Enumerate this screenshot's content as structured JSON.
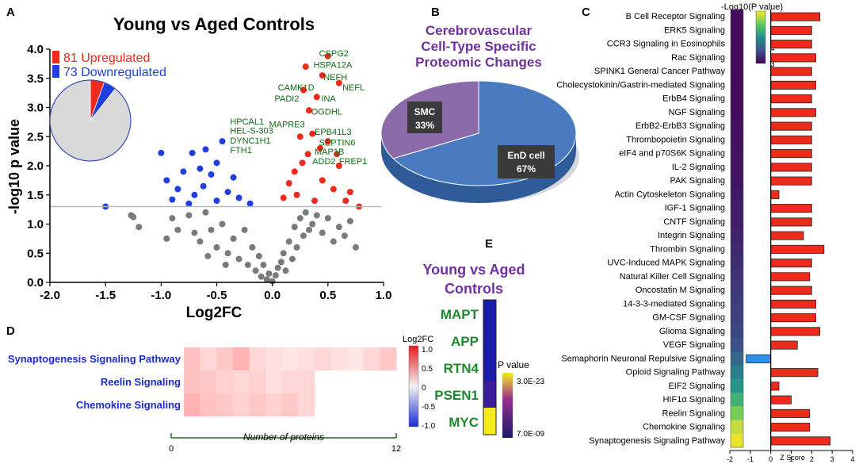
{
  "panels": {
    "A": "A",
    "B": "B",
    "C": "C",
    "D": "D",
    "E": "E"
  },
  "colors": {
    "up": "#ee2a1b",
    "down": "#1f3fe0",
    "ns": "#7a7a7a",
    "gene_label": "#0f6b12",
    "title_purple": "#7030a0",
    "pathway_blue": "#1c2bd2",
    "pie_end": "#4a7bc0",
    "pie_smc": "#8a6aa8",
    "bar_pos": "#ee2a1b",
    "bar_neg": "#2e8fe8"
  },
  "chart_data": [
    {
      "type": "scatter",
      "id": "volcano",
      "title": "Young vs Aged Controls",
      "xlabel": "Log2FC",
      "ylabel": "-log10 p value",
      "xlim": [
        -2.0,
        1.0
      ],
      "ylim": [
        0.0,
        4.0
      ],
      "xticks": [
        "-2.0",
        "-1.5",
        "-1.0",
        "-0.5",
        "0.0",
        "0.5",
        "1.0"
      ],
      "yticks": [
        "0.0",
        "0.5",
        "1.0",
        "1.5",
        "2.0",
        "2.5",
        "3.0",
        "3.5",
        "4.0"
      ],
      "threshold": 1.3,
      "legend": [
        {
          "label": "81 Upregulated",
          "color": "up"
        },
        {
          "label": "73 Downregulated",
          "color": "down"
        }
      ],
      "inset_pie": [
        {
          "name": "Upregulated",
          "value": 81
        },
        {
          "name": "Downregulated",
          "value": 73
        },
        {
          "name": "Unchanged",
          "value": 1300
        }
      ],
      "gene_labels": [
        {
          "text": "CSPG2",
          "x": 0.42,
          "y": 3.88
        },
        {
          "text": "HSPA12A",
          "x": 0.37,
          "y": 3.68
        },
        {
          "text": "NEFH",
          "x": 0.46,
          "y": 3.47
        },
        {
          "text": "CAMK1D",
          "x": 0.05,
          "y": 3.29
        },
        {
          "text": "NEFL",
          "x": 0.63,
          "y": 3.29
        },
        {
          "text": "PADI2",
          "x": 0.02,
          "y": 3.1
        },
        {
          "text": "INA",
          "x": 0.44,
          "y": 3.1
        },
        {
          "text": "OGDHL",
          "x": 0.35,
          "y": 2.88
        },
        {
          "text": "MAPRE3",
          "x": -0.03,
          "y": 2.66
        },
        {
          "text": "HPCAL1",
          "x": -0.38,
          "y": 2.71
        },
        {
          "text": "EPB41L3",
          "x": 0.38,
          "y": 2.53
        },
        {
          "text": "HEL-S-303",
          "x": -0.38,
          "y": 2.55
        },
        {
          "text": "SEPTIN6",
          "x": 0.42,
          "y": 2.35
        },
        {
          "text": "DYNC1H1",
          "x": -0.38,
          "y": 2.38
        },
        {
          "text": "MAP1B",
          "x": 0.38,
          "y": 2.19
        },
        {
          "text": "FTH1",
          "x": -0.38,
          "y": 2.22
        },
        {
          "text": "ADD2",
          "x": 0.36,
          "y": 2.03
        },
        {
          "text": "FREP1",
          "x": 0.6,
          "y": 2.03
        }
      ],
      "points_up": [
        [
          0.5,
          3.88
        ],
        [
          0.3,
          3.7
        ],
        [
          0.45,
          3.55
        ],
        [
          0.6,
          3.42
        ],
        [
          0.28,
          3.3
        ],
        [
          0.4,
          3.18
        ],
        [
          0.33,
          2.95
        ],
        [
          0.36,
          2.55
        ],
        [
          0.25,
          2.5
        ],
        [
          0.5,
          2.42
        ],
        [
          0.32,
          2.2
        ],
        [
          0.27,
          2.05
        ],
        [
          0.6,
          2.0
        ],
        [
          0.2,
          1.9
        ],
        [
          0.15,
          1.7
        ],
        [
          0.45,
          1.75
        ],
        [
          0.7,
          1.55
        ],
        [
          0.78,
          1.3
        ],
        [
          0.1,
          1.45
        ],
        [
          0.55,
          1.6
        ],
        [
          0.38,
          1.4
        ],
        [
          0.22,
          1.5
        ],
        [
          0.66,
          1.4
        ],
        [
          0.43,
          2.3
        ],
        [
          0.58,
          2.2
        ]
      ],
      "points_down": [
        [
          -0.45,
          2.42
        ],
        [
          -0.6,
          2.28
        ],
        [
          -0.72,
          2.22
        ],
        [
          -1.0,
          2.22
        ],
        [
          -0.5,
          2.05
        ],
        [
          -0.8,
          1.9
        ],
        [
          -0.55,
          1.85
        ],
        [
          -0.95,
          1.75
        ],
        [
          -0.62,
          1.65
        ],
        [
          -0.85,
          1.6
        ],
        [
          -0.4,
          1.55
        ],
        [
          -0.7,
          1.5
        ],
        [
          -0.3,
          1.45
        ],
        [
          -0.9,
          1.42
        ],
        [
          -0.5,
          1.4
        ],
        [
          -0.35,
          1.8
        ],
        [
          -0.75,
          1.35
        ],
        [
          -1.5,
          1.3
        ],
        [
          -0.2,
          1.35
        ],
        [
          -0.65,
          1.95
        ]
      ],
      "points_ns": [
        [
          -1.25,
          1.12
        ],
        [
          -1.27,
          1.15
        ],
        [
          -1.2,
          0.95
        ],
        [
          -0.9,
          1.1
        ],
        [
          -0.85,
          0.9
        ],
        [
          -0.7,
          0.85
        ],
        [
          -0.65,
          0.7
        ],
        [
          -0.55,
          0.9
        ],
        [
          -0.5,
          0.6
        ],
        [
          -0.45,
          1.0
        ],
        [
          -0.4,
          0.5
        ],
        [
          -0.35,
          0.75
        ],
        [
          -0.3,
          0.4
        ],
        [
          -0.25,
          0.9
        ],
        [
          -0.22,
          0.3
        ],
        [
          -0.18,
          0.6
        ],
        [
          -0.15,
          0.2
        ],
        [
          -0.12,
          0.45
        ],
        [
          -0.1,
          0.1
        ],
        [
          -0.08,
          0.3
        ],
        [
          -0.05,
          0.05
        ],
        [
          -0.03,
          0.15
        ],
        [
          0.0,
          0.02
        ],
        [
          0.03,
          0.12
        ],
        [
          0.05,
          0.25
        ],
        [
          0.08,
          0.35
        ],
        [
          0.1,
          0.5
        ],
        [
          0.12,
          0.2
        ],
        [
          0.15,
          0.7
        ],
        [
          0.18,
          0.4
        ],
        [
          0.2,
          0.95
        ],
        [
          0.22,
          0.6
        ],
        [
          0.25,
          1.1
        ],
        [
          0.28,
          0.8
        ],
        [
          0.3,
          1.2
        ],
        [
          0.33,
          0.9
        ],
        [
          0.36,
          1.0
        ],
        [
          0.4,
          1.15
        ],
        [
          0.45,
          0.85
        ],
        [
          0.5,
          1.1
        ],
        [
          0.55,
          0.7
        ],
        [
          0.6,
          0.95
        ],
        [
          0.65,
          0.8
        ],
        [
          0.7,
          1.05
        ],
        [
          0.75,
          0.6
        ],
        [
          -0.6,
          1.2
        ],
        [
          -0.75,
          1.15
        ],
        [
          -0.95,
          0.75
        ],
        [
          -0.58,
          0.45
        ],
        [
          -0.42,
          0.3
        ]
      ]
    },
    {
      "type": "pie",
      "id": "celltype",
      "title": [
        "Cerebrovascular",
        "Cell-Type Specific",
        "Proteomic Changes"
      ],
      "slices": [
        {
          "name": "EnD cell",
          "value": 67,
          "label": "67%"
        },
        {
          "name": "SMC",
          "value": 33,
          "label": "33%"
        }
      ]
    },
    {
      "type": "bar",
      "id": "pathways",
      "legend_title": "-Log10(P value)",
      "legend_ticks": [
        "6",
        "5",
        "4",
        "3"
      ],
      "xlabel": "Z Score",
      "xlim": [
        -2,
        4
      ],
      "xticks": [
        "-2",
        "-1",
        "0",
        "1",
        "2",
        "3",
        "4"
      ],
      "categories": [
        "B Cell Receptor Signaling",
        "ERK5 Signaling",
        "CCR3 Signaling in Eosinophils",
        "Rac Signaling",
        "SPINK1 General Cancer Pathway",
        "Cholecystokinin/Gastrin-mediated Signaling",
        "ErbB4 Signaling",
        "NGF Signaling",
        "ErbB2-ErbB3 Signaling",
        "Thrombopoietin Signaling",
        "eIF4 and p70S6K Signaling",
        "IL-2 Signaling",
        "PAK Signaling",
        "Actin Cytoskeleton Signaling",
        "IGF-1 Signaling",
        "CNTF Signaling",
        "Integrin Signaling",
        "Thrombin Signaling",
        "UVC-Induced MAPK Signaling",
        "Natural Killer Cell Signaling",
        "Oncostatin M Signaling",
        "14-3-3-mediated Signaling",
        "GM-CSF Signaling",
        "Glioma Signaling",
        "VEGF Signaling",
        "Semaphorin Neuronal Repulsive Signaling",
        "Opioid Signaling Pathway",
        "EIF2 Signaling",
        "HIF1α Signaling",
        "Reelin Signaling",
        "Chemokine Signaling",
        "Synaptogenesis Signaling Pathway"
      ],
      "zscores": [
        2.4,
        2.0,
        2.0,
        2.2,
        2.0,
        2.2,
        2.0,
        2.2,
        2.0,
        2.0,
        2.0,
        2.0,
        2.0,
        0.4,
        2.0,
        2.0,
        1.6,
        2.6,
        2.0,
        1.9,
        2.0,
        2.2,
        2.2,
        2.4,
        1.3,
        -1.2,
        2.3,
        0.4,
        1.0,
        1.9,
        1.9,
        2.9
      ],
      "neglog10p": [
        3.1,
        3.1,
        3.1,
        3.1,
        3.1,
        3.1,
        3.1,
        3.1,
        3.15,
        3.15,
        3.2,
        3.2,
        3.2,
        3.25,
        3.3,
        3.3,
        3.35,
        3.4,
        3.45,
        3.5,
        3.55,
        3.6,
        3.65,
        3.7,
        3.8,
        4.1,
        4.4,
        4.7,
        5.1,
        5.6,
        6.0,
        6.2
      ]
    },
    {
      "type": "heatmap",
      "id": "pathway_heatmap",
      "rows": [
        "Synaptogenesis Signaling Pathway",
        "Reelin Signaling",
        "Chemokine Signaling"
      ],
      "xlabel": "Number of proteins",
      "xlim": [
        0,
        12
      ],
      "xticks": [
        "0",
        "12"
      ],
      "colorbar_title": "Log2FC",
      "colorbar_ticks": [
        "1.0",
        "0.5",
        "0",
        "-0.5",
        "-1.0"
      ],
      "values": [
        [
          0.35,
          0.2,
          0.3,
          0.45,
          0.2,
          0.15,
          0.1,
          0.15,
          0.2,
          0.15,
          0.1,
          0.2,
          0.3
        ],
        [
          0.35,
          0.3,
          0.25,
          0.2,
          0.25,
          0.15,
          0.2,
          0.2
        ],
        [
          0.45,
          0.35,
          0.3,
          0.25,
          0.3,
          0.25,
          0.3,
          0.2
        ]
      ]
    },
    {
      "type": "heatmap",
      "id": "gene_heatmap",
      "title": [
        "Young vs Aged",
        "Controls"
      ],
      "rows": [
        "MAPT",
        "APP",
        "RTN4",
        "PSEN1",
        "MYC"
      ],
      "colorbar_title": "P value",
      "colorbar_ticks": [
        "3.0E-23",
        "7.0E-09"
      ],
      "values": [
        0.05,
        0.05,
        0.08,
        0.25,
        1.0
      ]
    }
  ]
}
